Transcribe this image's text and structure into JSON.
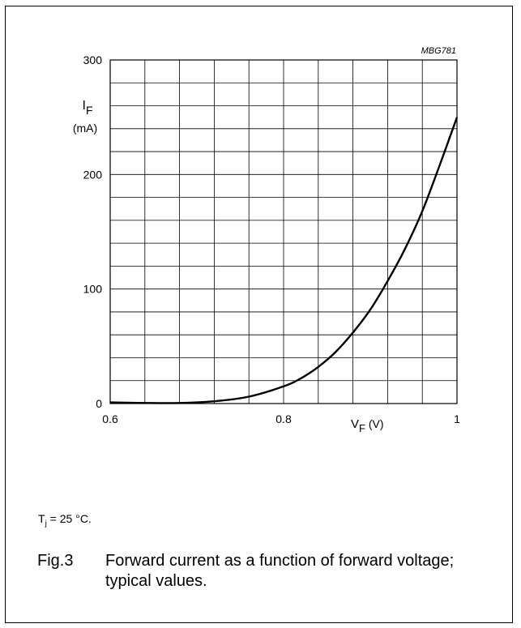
{
  "figure": {
    "code": "MBG781",
    "condition_prefix": "T",
    "condition_sub": "j",
    "condition_rest": " = 25 °C.",
    "number": "Fig.3",
    "caption": "Forward current as a function of forward voltage; typical values."
  },
  "chart_data": {
    "type": "line",
    "title": "",
    "xlabel": "V",
    "xlabel_sub": "F",
    "xlabel_unit": " (V)",
    "ylabel": "I",
    "ylabel_sub": "F",
    "ylabel_unit": "(mA)",
    "xlim": [
      0.6,
      1.0
    ],
    "ylim": [
      0,
      300
    ],
    "x_ticks": [
      0.6,
      0.8,
      1.0
    ],
    "x_tick_labels": [
      "0.6",
      "0.8",
      "1"
    ],
    "y_ticks": [
      0,
      100,
      200,
      300
    ],
    "y_tick_labels": [
      "0",
      "100",
      "200",
      "300"
    ],
    "grid": true,
    "x_minor_step": 0.04,
    "y_minor_step": 20,
    "series": [
      {
        "x": [
          0.6,
          0.64,
          0.68,
          0.72,
          0.76,
          0.8,
          0.82,
          0.84,
          0.86,
          0.88,
          0.9,
          0.92,
          0.94,
          0.96,
          0.98,
          1.0
        ],
        "y": [
          1,
          0.5,
          0.5,
          2,
          6,
          15,
          22,
          32,
          45,
          62,
          82,
          107,
          135,
          168,
          208,
          250
        ]
      }
    ]
  }
}
